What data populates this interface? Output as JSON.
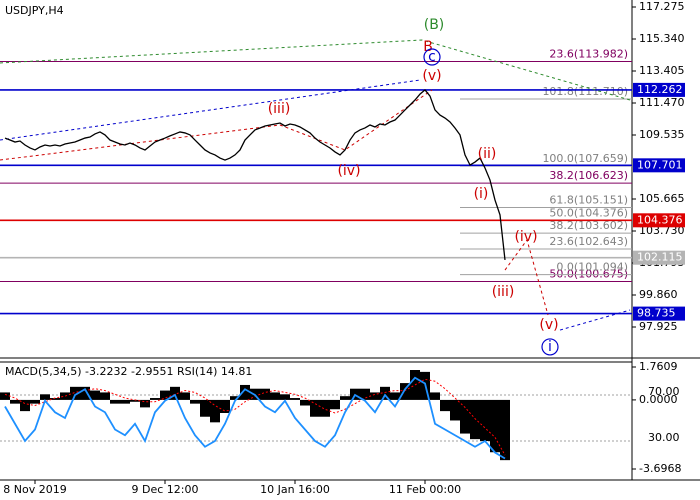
{
  "chart_data": [
    {
      "type": "line",
      "title": "USDJPY,H4",
      "color": "#000000",
      "categories": [
        null,
        null,
        null,
        null,
        null,
        null,
        "8 Nov 2019",
        null,
        null,
        null,
        null,
        null,
        null,
        null,
        null,
        null,
        null,
        null,
        null,
        null,
        null,
        null,
        null,
        null,
        null,
        null,
        null,
        null,
        null,
        null,
        null,
        null,
        "9 Dec 12:00",
        null,
        null,
        null,
        null,
        null,
        null,
        null,
        null,
        null,
        null,
        null,
        null,
        null,
        null,
        null,
        null,
        null,
        null,
        null,
        null,
        null,
        null,
        null,
        null,
        null,
        "10 Jan 16:00",
        null,
        null,
        null,
        null,
        null,
        null,
        null,
        null,
        null,
        null,
        null,
        null,
        null,
        null,
        null,
        null,
        null,
        null,
        null,
        null,
        null,
        null,
        null,
        null,
        null,
        "11 Feb 00:00",
        null,
        null,
        null,
        null,
        null,
        null,
        null,
        null,
        null,
        null,
        null,
        null,
        null,
        null,
        null,
        null
      ],
      "values": [
        109.35,
        109.23,
        109.11,
        109.17,
        108.93,
        108.75,
        108.63,
        108.81,
        108.93,
        108.87,
        108.93,
        108.87,
        108.99,
        109.05,
        109.11,
        109.23,
        109.35,
        109.41,
        109.6,
        109.72,
        109.54,
        109.23,
        109.11,
        108.99,
        108.93,
        109.05,
        108.93,
        108.75,
        108.63,
        108.87,
        109.11,
        109.23,
        109.35,
        109.48,
        109.6,
        109.72,
        109.66,
        109.54,
        109.23,
        108.93,
        108.63,
        108.45,
        108.33,
        108.14,
        108.02,
        108.14,
        108.33,
        108.63,
        109.23,
        109.54,
        109.84,
        109.96,
        110.08,
        110.14,
        110.2,
        110.26,
        110.08,
        110.2,
        110.14,
        110.02,
        109.84,
        109.66,
        109.35,
        109.11,
        108.93,
        108.75,
        108.51,
        108.33,
        108.63,
        109.23,
        109.66,
        109.84,
        109.96,
        110.14,
        110.02,
        110.2,
        110.14,
        110.32,
        110.44,
        110.74,
        111.05,
        111.35,
        111.65,
        112.01,
        112.26,
        111.89,
        111.05,
        110.74,
        110.56,
        110.32,
        109.96,
        109.54,
        108.33,
        107.72,
        107.9,
        108.14,
        107.54,
        106.81,
        105.6,
        104.7,
        101.98
      ],
      "ylim": [
        96.836,
        117.698
      ],
      "yticks": [
        117.275,
        {
          "value": 115.34,
          "label": "115.340"
        },
        113.405,
        {
          "value": 111.47,
          "label": "111.470"
        },
        109.535,
        105.665,
        {
          "value": 103.73,
          "label": "103.730"
        },
        101.795,
        {
          "value": 99.86,
          "label": "99.860"
        },
        97.925
      ],
      "price_lines": [
        {
          "value": 112.262,
          "color": "#0000cc"
        },
        {
          "value": 107.701,
          "color": "#0000cc"
        },
        {
          "value": 104.376,
          "color": "#dd0000"
        },
        {
          "value": 102.115,
          "color": "#b4b4b4"
        },
        {
          "value": 98.735,
          "color": "#0000cc"
        }
      ],
      "levels": [
        {
          "label": "23.6(113.982)",
          "value": 113.982,
          "color": "#800060"
        },
        {
          "label": "38.2(106.623)",
          "value": 106.623,
          "color": "#800060"
        },
        {
          "label": "50.0(100.675)",
          "value": 100.675,
          "color": "#800060"
        }
      ],
      "fib_levels": [
        {
          "label": "101.8(111.710)",
          "value": 111.71,
          "color": "#a0a0a0"
        },
        {
          "label": "100.0(107.659)",
          "value": 107.659,
          "color": "#a0a0a0"
        },
        {
          "label": "61.8(105.151)",
          "value": 105.151,
          "color": "#a0a0a0"
        },
        {
          "label": "50.0(104.376)",
          "value": 104.376,
          "color": "#a0a0a0"
        },
        {
          "label": "38.2(103.602)",
          "value": 103.602,
          "color": "#a0a0a0"
        },
        {
          "label": "23.6(102.643)",
          "value": 102.643,
          "color": "#a0a0a0"
        },
        {
          "label": "0.0(101.094)",
          "value": 101.094,
          "color": "#a0a0a0"
        }
      ],
      "annotations": [
        {
          "text": "(B)",
          "x": 85.8,
          "y": 116.19,
          "color": "#2e8b2e"
        },
        {
          "text": "B",
          "x": 84.6,
          "y": 114.86,
          "color": "#cc0000"
        },
        {
          "text": "c",
          "x": 85.4,
          "y": 114.25,
          "color": "#0000cc",
          "circled": true
        },
        {
          "text": "(v)",
          "x": 85.4,
          "y": 113.1,
          "color": "#cc0000"
        },
        {
          "text": "(iii)",
          "x": 54.8,
          "y": 111.11,
          "color": "#cc0000"
        },
        {
          "text": "(iv)",
          "x": 68.8,
          "y": 107.36,
          "color": "#cc0000"
        },
        {
          "text": "(ii)",
          "x": 96.4,
          "y": 108.39,
          "color": "#cc0000"
        },
        {
          "text": "(i)",
          "x": 95.2,
          "y": 105.97,
          "color": "#cc0000"
        },
        {
          "text": "(iv)",
          "x": 104.2,
          "y": 103.37,
          "color": "#cc0000"
        },
        {
          "text": "(iii)",
          "x": 99.6,
          "y": 100.04,
          "color": "#cc0000"
        },
        {
          "text": "(v)",
          "x": 108.8,
          "y": 98.05,
          "color": "#cc0000"
        },
        {
          "text": "i",
          "x": 109,
          "y": 96.72,
          "color": "#0000cc",
          "circled": true
        }
      ],
      "trendlines": [
        {
          "color": "#0000cc",
          "points": [
            [
              -1,
              109.23
            ],
            [
              83,
              112.86
            ]
          ]
        },
        {
          "color": "#2e8b2e",
          "points": [
            [
              -1,
              113.89
            ],
            [
              83.4,
              115.28
            ],
            [
              125,
              111.65
            ]
          ]
        },
        {
          "color": "#cc0000",
          "points": [
            [
              -1,
              108.02
            ],
            [
              55,
              110.14
            ],
            [
              68,
              108.63
            ],
            [
              85.4,
              112.26
            ]
          ]
        },
        {
          "color": "#cc0000",
          "points": [
            [
              100,
              101.37
            ],
            [
              104.4,
              103.19
            ],
            [
              108.6,
              98.65
            ]
          ]
        },
        {
          "color": "#0000cc",
          "points": [
            [
              111,
              97.74
            ],
            [
              125,
              98.95
            ]
          ]
        }
      ]
    },
    {
      "type": "macd",
      "title": "MACD(5,34,5) -3.2232 -2.9551 RSI(14) 14.81",
      "ylim": [
        -3.6968,
        1.7609
      ],
      "yticks": [
        1.7609,
        {
          "value": 0,
          "label": "0.0000"
        },
        -3.6968
      ],
      "y2lim": [
        5.65,
        94.35
      ],
      "y2ticks": [
        {
          "value": 70,
          "label": "70.00"
        },
        {
          "value": 30,
          "label": "30.00"
        }
      ],
      "series": [
        {
          "type": "bar",
          "color": "#000000",
          "values": [
            0.4,
            -0.2,
            -0.6,
            -0.2,
            0.3,
            0.1,
            0.4,
            0.7,
            0.7,
            0.5,
            0.4,
            -0.2,
            -0.2,
            -0.1,
            -0.4,
            0.1,
            0.5,
            0.7,
            0.4,
            -0.2,
            -0.9,
            -1.2,
            -0.7,
            0.2,
            0.8,
            0.6,
            0.6,
            0.4,
            0.3,
            0.1,
            -0.3,
            -0.9,
            -0.9,
            -0.5,
            0.2,
            0.6,
            0.6,
            0.4,
            0.7,
            0.4,
            0.9,
            1.6,
            1.5,
            0.4,
            -0.6,
            -1.1,
            -1.8,
            -2.1,
            -2.2,
            -2.8,
            -3.2232
          ]
        },
        {
          "type": "line",
          "color": "#ff0000",
          "dashed": true,
          "values": [
            0.3,
            0.1,
            -0.2,
            -0.3,
            -0.1,
            0.1,
            0.2,
            0.4,
            0.5,
            0.6,
            0.5,
            0.3,
            0.1,
            0.0,
            -0.1,
            -0.1,
            0.1,
            0.3,
            0.5,
            0.4,
            0.1,
            -0.3,
            -0.6,
            -0.5,
            -0.1,
            0.2,
            0.4,
            0.5,
            0.4,
            0.3,
            0.1,
            -0.2,
            -0.5,
            -0.7,
            -0.5,
            -0.2,
            0.1,
            0.3,
            0.4,
            0.5,
            0.5,
            0.8,
            1.1,
            1.0,
            0.6,
            0.1,
            -0.4,
            -1.0,
            -1.5,
            -2.0,
            -2.9551
          ]
        },
        {
          "type": "line",
          "color": "#1e90ff",
          "axis": "y2",
          "values": [
            60,
            45,
            30,
            40,
            65,
            55,
            50,
            70,
            75,
            60,
            55,
            40,
            35,
            45,
            30,
            55,
            65,
            70,
            50,
            35,
            25,
            30,
            45,
            65,
            75,
            70,
            60,
            55,
            65,
            50,
            40,
            30,
            25,
            35,
            55,
            70,
            65,
            55,
            70,
            60,
            75,
            85,
            80,
            45,
            40,
            35,
            30,
            25,
            30,
            20,
            14.81
          ]
        }
      ]
    }
  ]
}
